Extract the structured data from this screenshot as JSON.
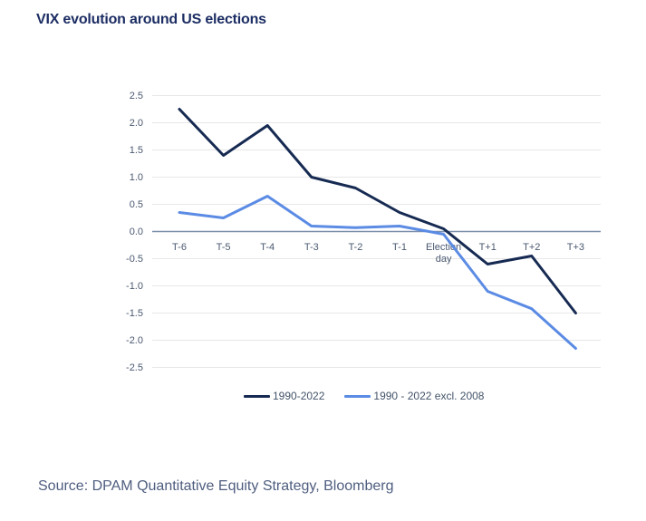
{
  "title": "VIX evolution around US elections",
  "source": "Source: DPAM Quantitative Equity Strategy, Bloomberg",
  "colors": {
    "title": "#1c2d63",
    "axis_labels": "#4a5870",
    "gridline": "#e7e7e7",
    "zero_line": "#7b90ac",
    "series_dark": "#162a52",
    "series_light": "#5b8be4"
  },
  "chart_data": {
    "type": "line",
    "categories": [
      "T-6",
      "T-5",
      "T-4",
      "T-3",
      "T-2",
      "T-1",
      "Election day",
      "T+1",
      "T+2",
      "T+3"
    ],
    "series": [
      {
        "name": "1990-2022",
        "color": "#162a52",
        "values": [
          2.25,
          1.4,
          1.95,
          1.0,
          0.8,
          0.35,
          0.05,
          -0.6,
          -0.45,
          -1.5
        ]
      },
      {
        "name": "1990 - 2022 excl. 2008",
        "color": "#5b8be4",
        "values": [
          0.35,
          0.25,
          0.65,
          0.1,
          0.07,
          0.1,
          -0.05,
          -1.1,
          -1.42,
          -2.15
        ]
      }
    ],
    "title": "VIX evolution around US elections",
    "xlabel": "",
    "ylabel": "",
    "ylim": [
      -2.5,
      2.5
    ],
    "ytick_step": 0.5,
    "grid": true,
    "legend_position": "bottom"
  }
}
